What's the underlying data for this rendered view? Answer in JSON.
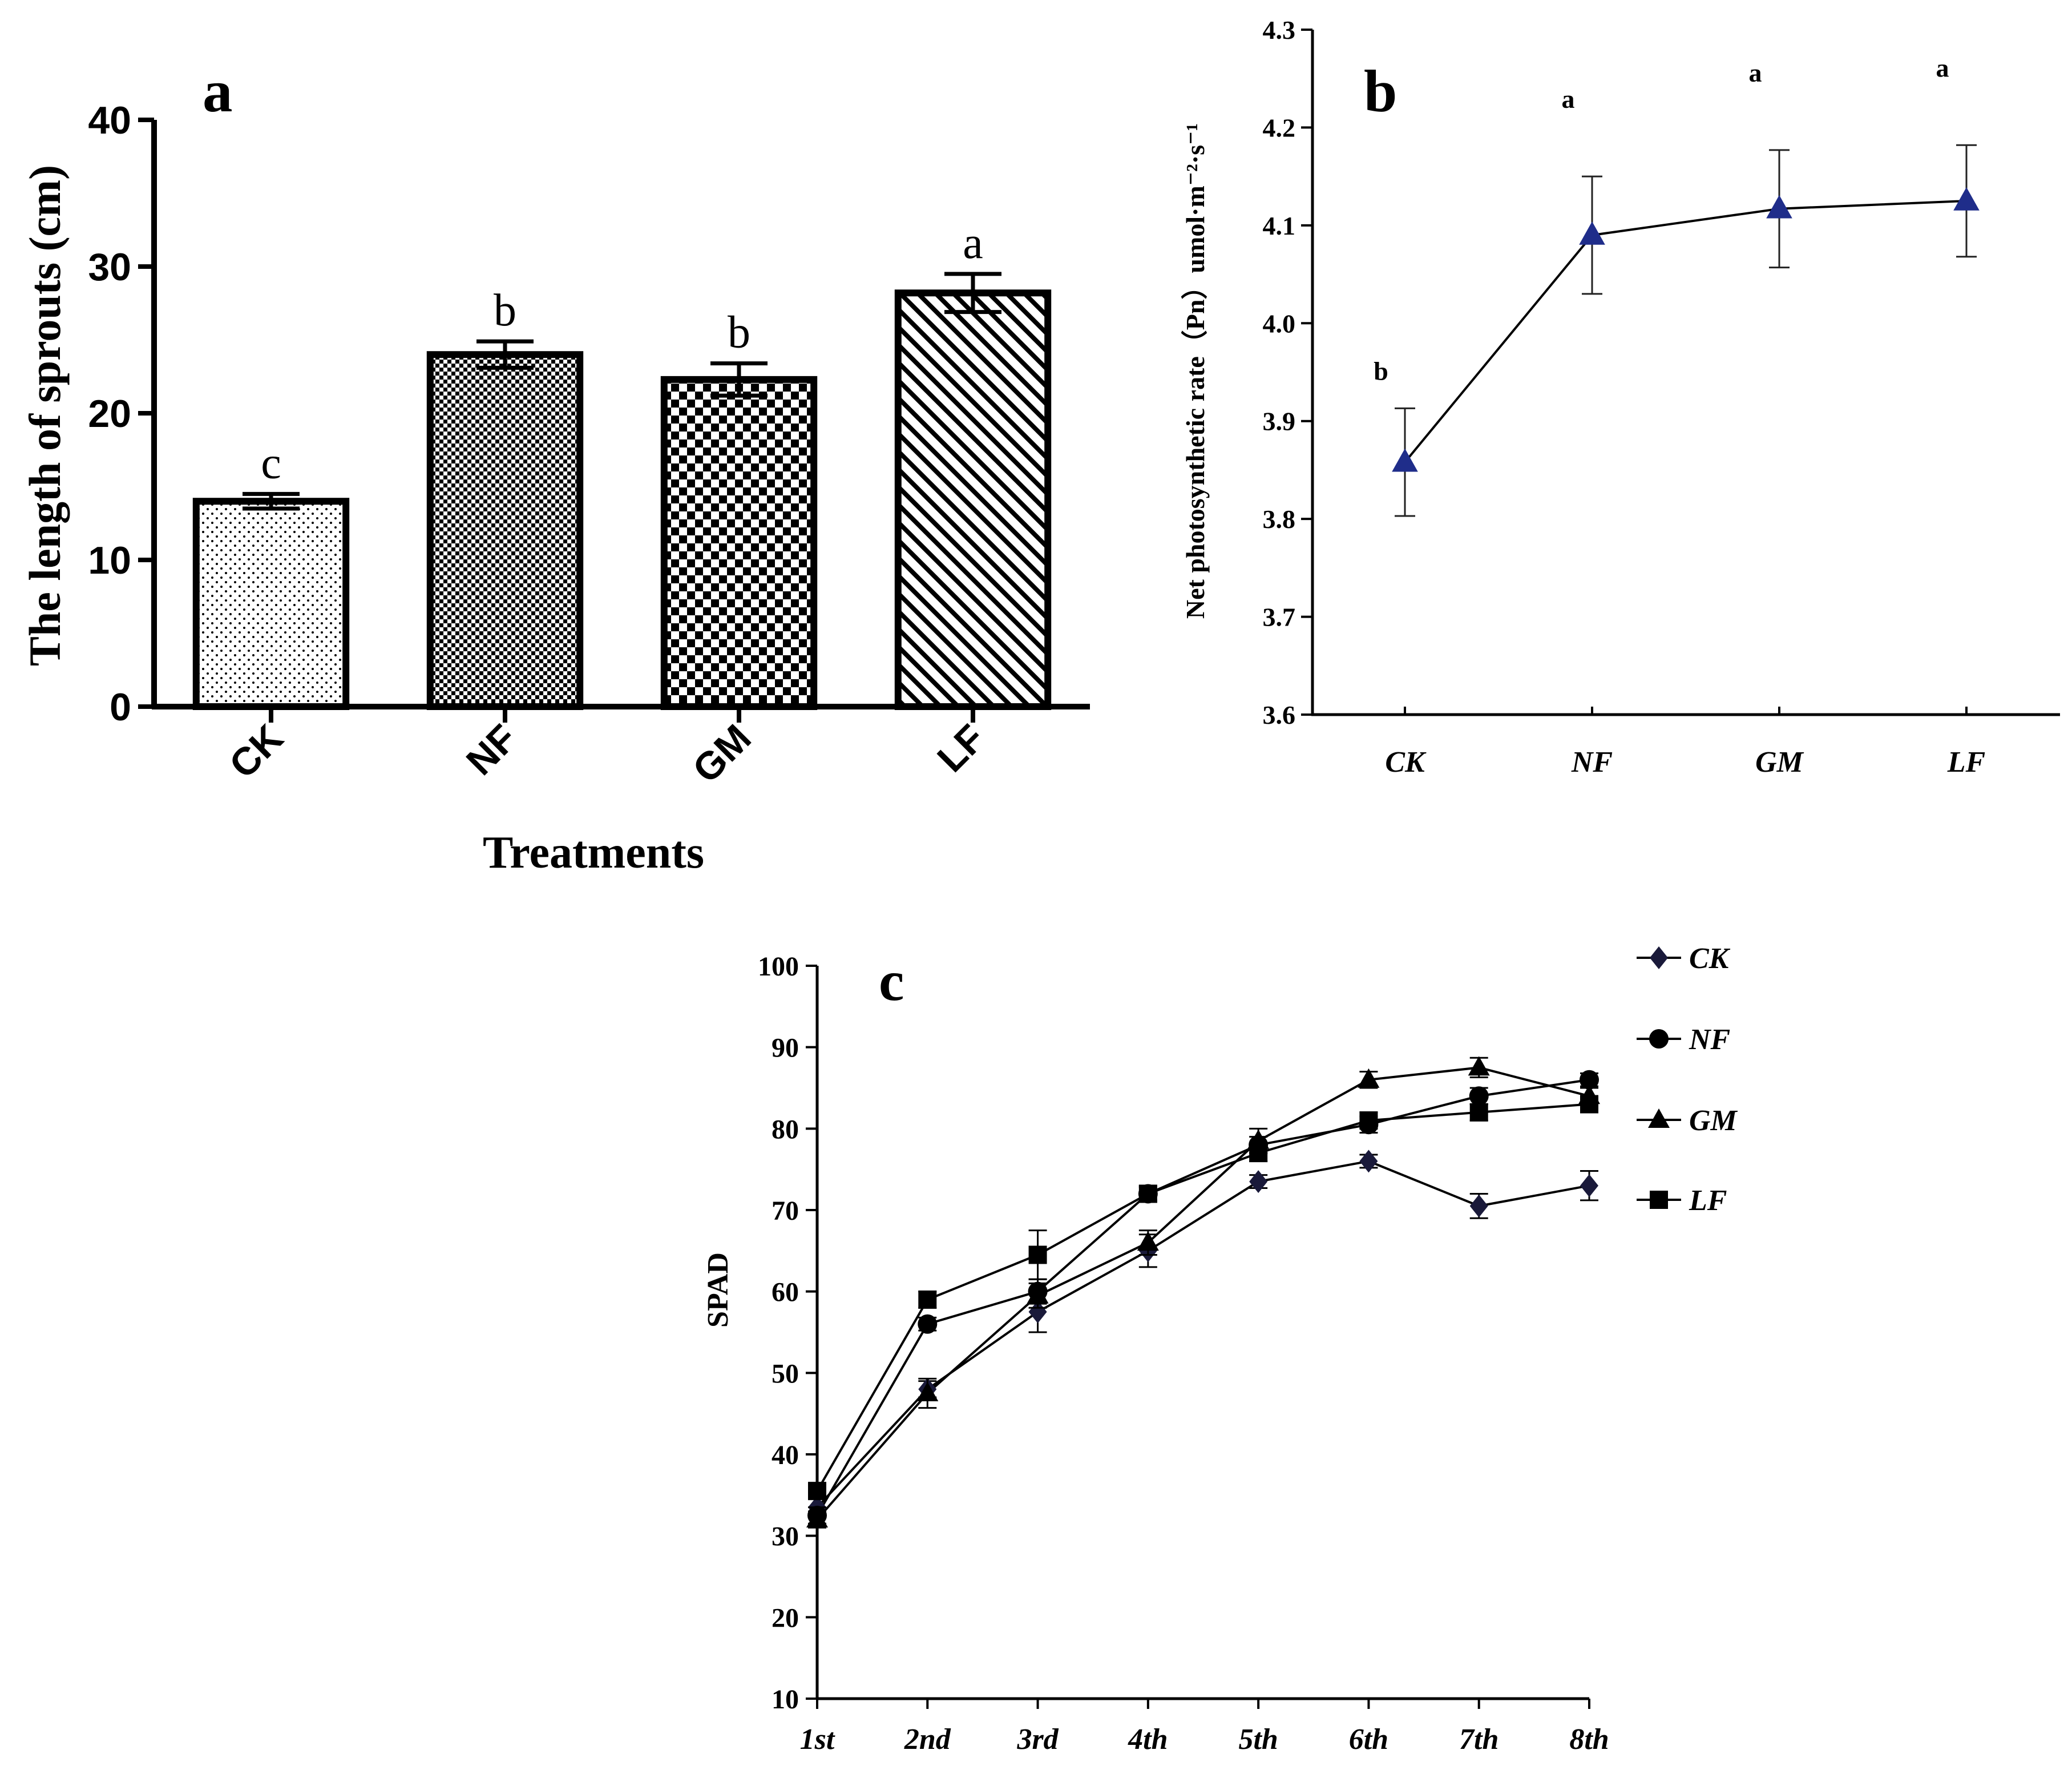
{
  "chart_data": [
    {
      "panel": "a",
      "type": "bar",
      "title": "",
      "xlabel": "Treatments",
      "ylabel": "The length of sprouts (cm)",
      "categories": [
        "CK",
        "NF",
        "GM",
        "LF"
      ],
      "values": [
        14.0,
        24.0,
        22.3,
        28.2
      ],
      "errors": [
        0.5,
        0.9,
        1.1,
        1.3
      ],
      "significance": [
        "c",
        "b",
        "b",
        "a"
      ],
      "patterns": [
        "dots",
        "fine-check",
        "checker",
        "diagonal"
      ],
      "ylim": [
        0,
        40
      ],
      "yticks": [
        "0",
        "10",
        "20",
        "30",
        "40"
      ]
    },
    {
      "panel": "b",
      "type": "line",
      "title": "",
      "xlabel": "",
      "ylabel": "Net photosynthetic rate（Pn）umol·m⁻²·s⁻¹",
      "categories": [
        "CK",
        "NF",
        "GM",
        "LF"
      ],
      "values": [
        3.858,
        4.09,
        4.117,
        4.125
      ],
      "errors": [
        0.055,
        0.06,
        0.06,
        0.057
      ],
      "significance": [
        "b",
        "a",
        "a",
        "a"
      ],
      "marker": "triangle",
      "color": "#1f2d8a",
      "ylim": [
        3.6,
        4.3
      ],
      "yticks": [
        "3.6",
        "3.7",
        "3.8",
        "3.9",
        "4.0",
        "4.1",
        "4.2",
        "4.3"
      ]
    },
    {
      "panel": "c",
      "type": "line",
      "title": "",
      "xlabel": "",
      "ylabel": "SPAD",
      "categories": [
        "1st",
        "2nd",
        "3rd",
        "4th",
        "5th",
        "6th",
        "7th",
        "8th"
      ],
      "ylim": [
        10,
        100
      ],
      "yticks": [
        "10",
        "20",
        "30",
        "40",
        "50",
        "60",
        "70",
        "80",
        "90",
        "100"
      ],
      "legend_position": "right",
      "series": [
        {
          "name": "CK",
          "marker": "diamond",
          "values": [
            33.5,
            48.0,
            57.5,
            65.0,
            73.5,
            76.0,
            70.5,
            73.0
          ],
          "errors": [
            1.0,
            1.0,
            2.5,
            2.0,
            0.8,
            0.8,
            1.5,
            1.8
          ]
        },
        {
          "name": "NF",
          "marker": "circle",
          "values": [
            32.5,
            56.0,
            60.0,
            72.0,
            78.0,
            80.5,
            84.0,
            86.0
          ],
          "errors": [
            1.0,
            0.8,
            1.5,
            0.8,
            1.0,
            1.0,
            1.0,
            0.8
          ]
        },
        {
          "name": "GM",
          "marker": "triangle",
          "values": [
            32.0,
            47.5,
            59.5,
            66.0,
            78.5,
            86.0,
            87.5,
            84.0
          ],
          "errors": [
            1.0,
            1.8,
            1.5,
            1.5,
            1.5,
            1.0,
            1.2,
            1.0
          ]
        },
        {
          "name": "LF",
          "marker": "square",
          "values": [
            35.5,
            59.0,
            64.5,
            72.0,
            77.0,
            81.0,
            82.0,
            83.0
          ],
          "errors": [
            1.0,
            1.0,
            3.0,
            1.0,
            1.0,
            1.0,
            1.0,
            1.0
          ]
        }
      ]
    }
  ],
  "panel_labels": {
    "a": "a",
    "b": "b",
    "c": "c"
  }
}
